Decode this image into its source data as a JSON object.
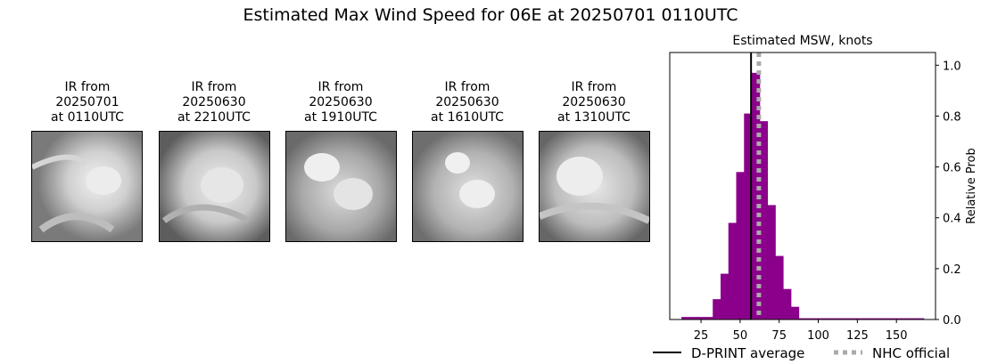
{
  "title": "Estimated Max Wind Speed for 06E at 20250701 0110UTC",
  "ir_panels": [
    {
      "line1": "IR from",
      "line2": "20250701",
      "line3": "at 0110UTC"
    },
    {
      "line1": "IR from",
      "line2": "20250630",
      "line3": "at 2210UTC"
    },
    {
      "line1": "IR from",
      "line2": "20250630",
      "line3": "at 1910UTC"
    },
    {
      "line1": "IR from",
      "line2": "20250630",
      "line3": "at 1610UTC"
    },
    {
      "line1": "IR from",
      "line2": "20250630",
      "line3": "at 1310UTC"
    }
  ],
  "chart_data": {
    "type": "bar",
    "title": "Estimated MSW, knots",
    "xlabel": "",
    "ylabel": "Relative Prob",
    "xlim": [
      5,
      175
    ],
    "ylim": [
      0,
      1.05
    ],
    "xticks": [
      25,
      50,
      75,
      100,
      125,
      150
    ],
    "yticks": [
      0.0,
      0.2,
      0.4,
      0.6,
      0.8,
      1.0
    ],
    "bin_width": 5,
    "bins": [
      {
        "x": 15,
        "y": 0.01
      },
      {
        "x": 20,
        "y": 0.01
      },
      {
        "x": 25,
        "y": 0.01
      },
      {
        "x": 30,
        "y": 0.01
      },
      {
        "x": 35,
        "y": 0.08
      },
      {
        "x": 40,
        "y": 0.18
      },
      {
        "x": 45,
        "y": 0.38
      },
      {
        "x": 50,
        "y": 0.58
      },
      {
        "x": 55,
        "y": 0.81
      },
      {
        "x": 60,
        "y": 0.97
      },
      {
        "x": 65,
        "y": 0.78
      },
      {
        "x": 70,
        "y": 0.45
      },
      {
        "x": 75,
        "y": 0.25
      },
      {
        "x": 80,
        "y": 0.12
      },
      {
        "x": 85,
        "y": 0.05
      },
      {
        "x": 90,
        "y": 0.005
      },
      {
        "x": 95,
        "y": 0.005
      },
      {
        "x": 100,
        "y": 0.005
      },
      {
        "x": 105,
        "y": 0.005
      },
      {
        "x": 110,
        "y": 0.005
      },
      {
        "x": 115,
        "y": 0.005
      },
      {
        "x": 120,
        "y": 0.005
      },
      {
        "x": 125,
        "y": 0.005
      },
      {
        "x": 130,
        "y": 0.005
      },
      {
        "x": 135,
        "y": 0.005
      },
      {
        "x": 140,
        "y": 0.005
      },
      {
        "x": 145,
        "y": 0.005
      },
      {
        "x": 150,
        "y": 0.005
      },
      {
        "x": 155,
        "y": 0.005
      },
      {
        "x": 160,
        "y": 0.005
      },
      {
        "x": 165,
        "y": 0.005
      }
    ],
    "bar_color": "#8b008b",
    "dprint_average": 57,
    "nhc_official": 62,
    "legend": [
      {
        "label": "D-PRINT average",
        "style": "solid",
        "color": "#000000"
      },
      {
        "label": "NHC official",
        "style": "dotted",
        "color": "#aaaaaa"
      }
    ],
    "legend_position": "bottom"
  }
}
